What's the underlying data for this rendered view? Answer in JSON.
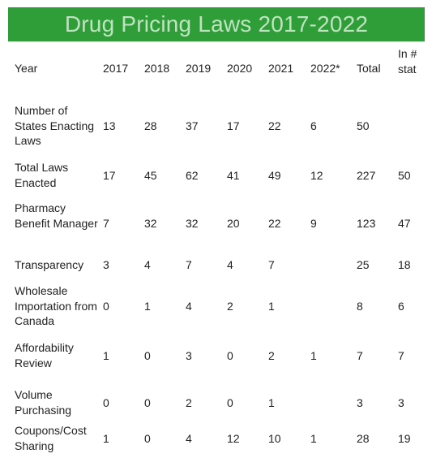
{
  "title": "Drug Pricing Laws 2017-2022",
  "columns": [
    "Year",
    "2017",
    "2018",
    "2019",
    "2020",
    "2021",
    "2022*",
    "Total",
    "In # of states"
  ],
  "rows": [
    {
      "label": "Number of States Enacting Laws",
      "values": [
        "13",
        "28",
        "37",
        "17",
        "22",
        "6",
        "50",
        ""
      ]
    },
    {
      "label": "Total Laws Enacted",
      "values": [
        "17",
        "45",
        "62",
        "41",
        "49",
        "12",
        "227",
        "50"
      ]
    },
    {
      "label": "Pharmacy Benefit Manager",
      "values": [
        "7",
        "32",
        "32",
        "20",
        "22",
        "9",
        "123",
        "47"
      ]
    },
    {
      "label": "Transparency",
      "values": [
        "3",
        "4",
        "7",
        "4",
        "7",
        "",
        "25",
        "18"
      ]
    },
    {
      "label": "Wholesale Importation from Canada",
      "values": [
        "0",
        "1",
        "4",
        "2",
        "1",
        "",
        "8",
        "6"
      ]
    },
    {
      "label": "Affordability Review",
      "values": [
        "1",
        "0",
        "3",
        "0",
        "2",
        "1",
        "7",
        "7"
      ]
    },
    {
      "label": "Volume Purchasing",
      "values": [
        "0",
        "0",
        "2",
        "0",
        "1",
        "",
        "3",
        "3"
      ]
    },
    {
      "label": "Coupons/Cost Sharing",
      "values": [
        "1",
        "0",
        "4",
        "12",
        "10",
        "1",
        "28",
        "19"
      ]
    }
  ],
  "colors": {
    "banner": "#2f9e38",
    "banner_text": "#bfe3c1"
  }
}
